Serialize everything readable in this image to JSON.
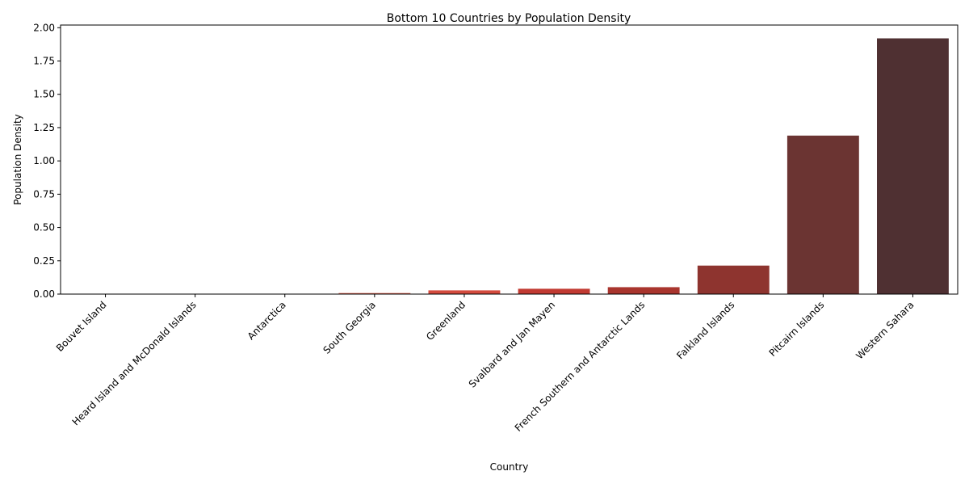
{
  "chart_data": {
    "type": "bar",
    "title": "Bottom 10 Countries by Population Density",
    "xlabel": "Country",
    "ylabel": "Population Density",
    "categories": [
      "Bouvet Island",
      "Heard Island and McDonald Islands",
      "Antarctica",
      "South Georgia",
      "Greenland",
      "Svalbard and Jan Mayen",
      "French Southern and Antarctic Lands",
      "Falkland Islands",
      "Pitcairn Islands",
      "Western Sahara"
    ],
    "values": [
      0.0,
      0.0,
      0.0,
      0.008,
      0.028,
      0.04,
      0.052,
      0.214,
      1.19,
      1.92
    ],
    "colors": [
      "#e8b8ad",
      "#e49c8b",
      "#e07f6a",
      "#dc6452",
      "#d44b3e",
      "#c13a32",
      "#a9352e",
      "#8e342f",
      "#6b3432",
      "#4f3032"
    ],
    "ylim": [
      0,
      2.02
    ],
    "yticks": [
      "0.00",
      "0.25",
      "0.50",
      "0.75",
      "1.00",
      "1.25",
      "1.50",
      "1.75",
      "2.00"
    ],
    "grid": false,
    "legend": "none"
  }
}
